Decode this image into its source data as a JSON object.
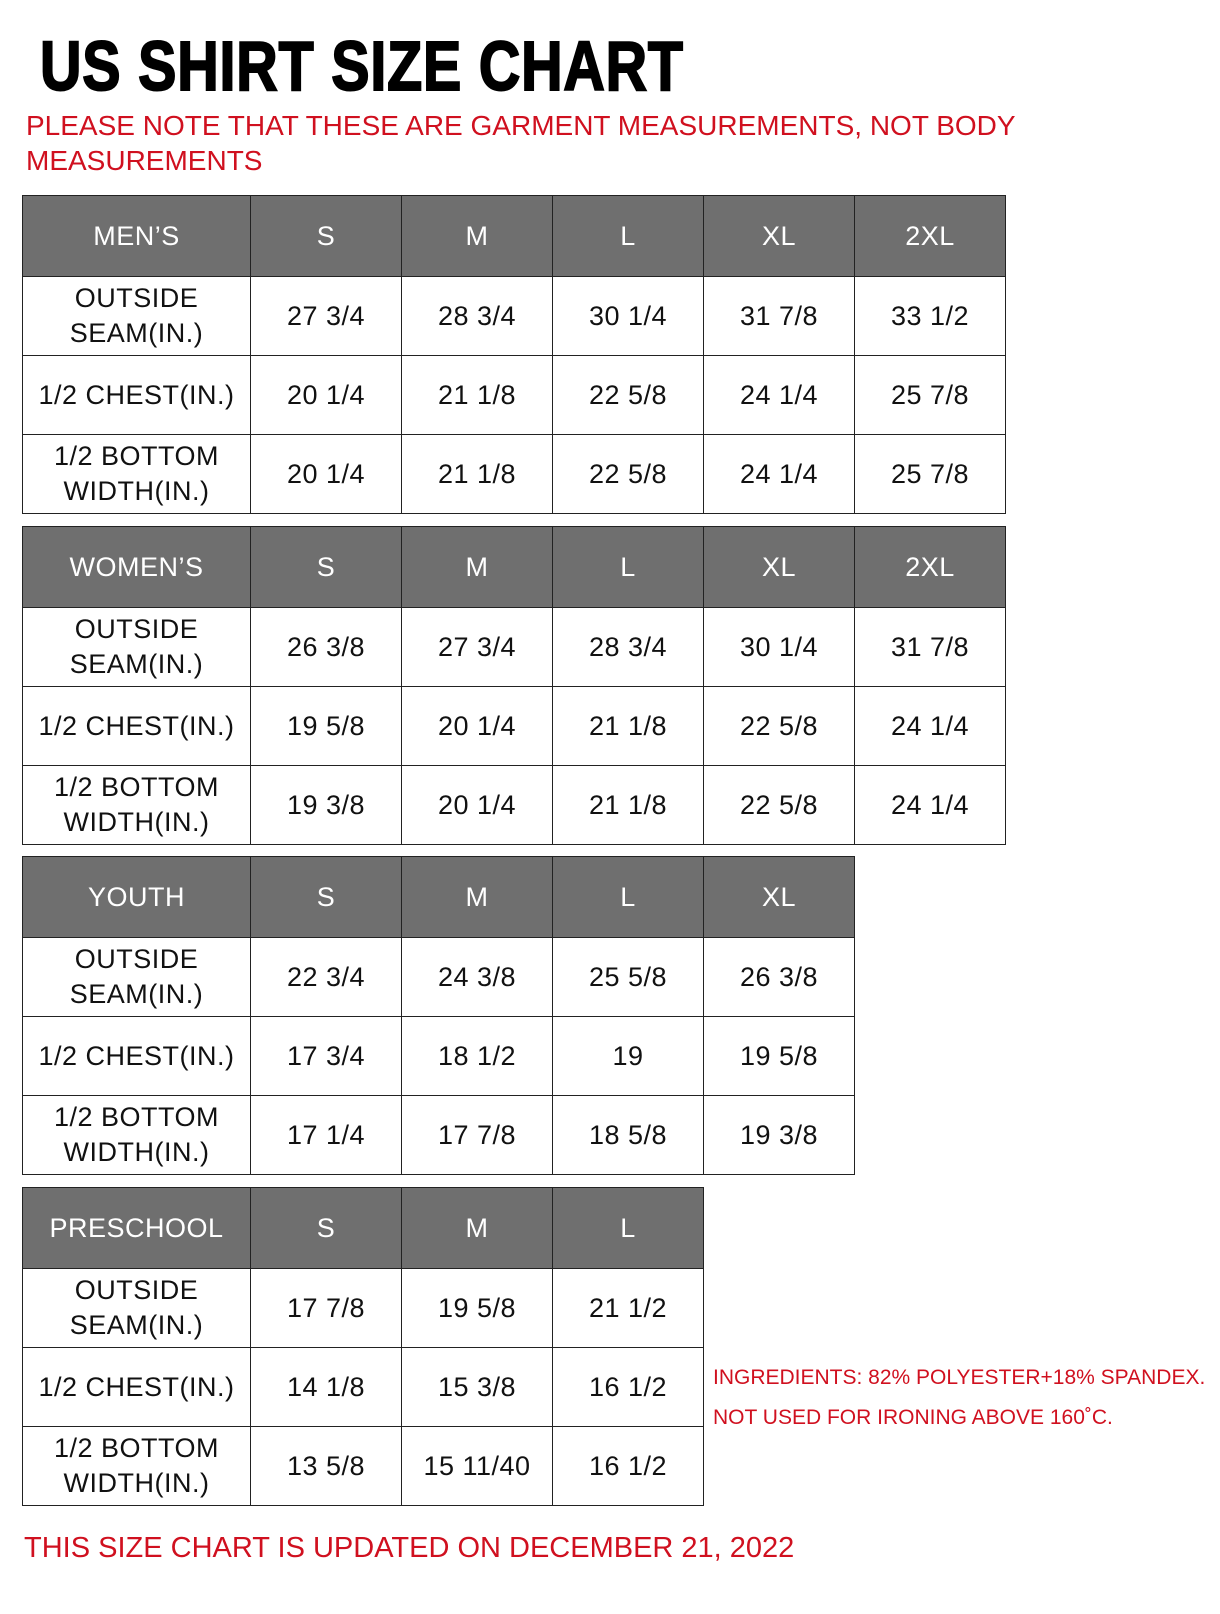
{
  "title": "US SHIRT SIZE CHART",
  "note": "PLEASE NOTE THAT THESE ARE GARMENT MEASUREMENTS, NOT BODY MEASUREMENTS",
  "colors": {
    "header_bg": "#6f6f6f",
    "accent_red": "#d0101f"
  },
  "sections": [
    {
      "name": "MEN’S",
      "sizes": [
        "S",
        "M",
        "L",
        "XL",
        "2XL"
      ],
      "rows": [
        {
          "label": [
            "OUTSIDE",
            "SEAM(IN.)"
          ],
          "values": [
            "27 3/4",
            "28 3/4",
            "30 1/4",
            "31 7/8",
            "33 1/2"
          ]
        },
        {
          "label": [
            "1/2 CHEST(IN.)"
          ],
          "values": [
            "20 1/4",
            "21 1/8",
            "22 5/8",
            "24 1/4",
            "25 7/8"
          ]
        },
        {
          "label": [
            "1/2 BOTTOM",
            "WIDTH(IN.)"
          ],
          "values": [
            "20 1/4",
            "21 1/8",
            "22 5/8",
            "24 1/4",
            "25 7/8"
          ]
        }
      ]
    },
    {
      "name": "WOMEN’S",
      "sizes": [
        "S",
        "M",
        "L",
        "XL",
        "2XL"
      ],
      "rows": [
        {
          "label": [
            "OUTSIDE",
            "SEAM(IN.)"
          ],
          "values": [
            "26 3/8",
            "27 3/4",
            "28 3/4",
            "30 1/4",
            "31 7/8"
          ]
        },
        {
          "label": [
            "1/2 CHEST(IN.)"
          ],
          "values": [
            "19 5/8",
            "20 1/4",
            "21 1/8",
            "22 5/8",
            "24 1/4"
          ]
        },
        {
          "label": [
            "1/2 BOTTOM",
            "WIDTH(IN.)"
          ],
          "values": [
            "19 3/8",
            "20 1/4",
            "21 1/8",
            "22 5/8",
            "24 1/4"
          ]
        }
      ]
    },
    {
      "name": "YOUTH",
      "sizes": [
        "S",
        "M",
        "L",
        "XL"
      ],
      "rows": [
        {
          "label": [
            "OUTSIDE",
            "SEAM(IN.)"
          ],
          "values": [
            "22 3/4",
            "24 3/8",
            "25 5/8",
            "26 3/8"
          ]
        },
        {
          "label": [
            "1/2 CHEST(IN.)"
          ],
          "values": [
            "17 3/4",
            "18 1/2",
            "19",
            "19 5/8"
          ]
        },
        {
          "label": [
            "1/2 BOTTOM",
            "WIDTH(IN.)"
          ],
          "values": [
            "17 1/4",
            "17 7/8",
            "18 5/8",
            "19 3/8"
          ]
        }
      ]
    },
    {
      "name": "PRESCHOOL",
      "sizes": [
        "S",
        "M",
        "L"
      ],
      "rows": [
        {
          "label": [
            "OUTSIDE",
            "SEAM(IN.)"
          ],
          "values": [
            "17 7/8",
            "19 5/8",
            "21 1/2"
          ]
        },
        {
          "label": [
            "1/2 CHEST(IN.)"
          ],
          "values": [
            "14 1/8",
            "15 3/8",
            "16 1/2"
          ]
        },
        {
          "label": [
            "1/2 BOTTOM",
            "WIDTH(IN.)"
          ],
          "values": [
            "13 5/8",
            "15 11/40",
            "16 1/2"
          ]
        }
      ]
    }
  ],
  "info": {
    "ingredients": "INGREDIENTS: 82% POLYESTER+18% SPANDEX.",
    "ironing": "NOT USED FOR IRONING ABOVE 160˚C."
  },
  "footer": "THIS SIZE CHART IS UPDATED ON DECEMBER 21, 2022"
}
